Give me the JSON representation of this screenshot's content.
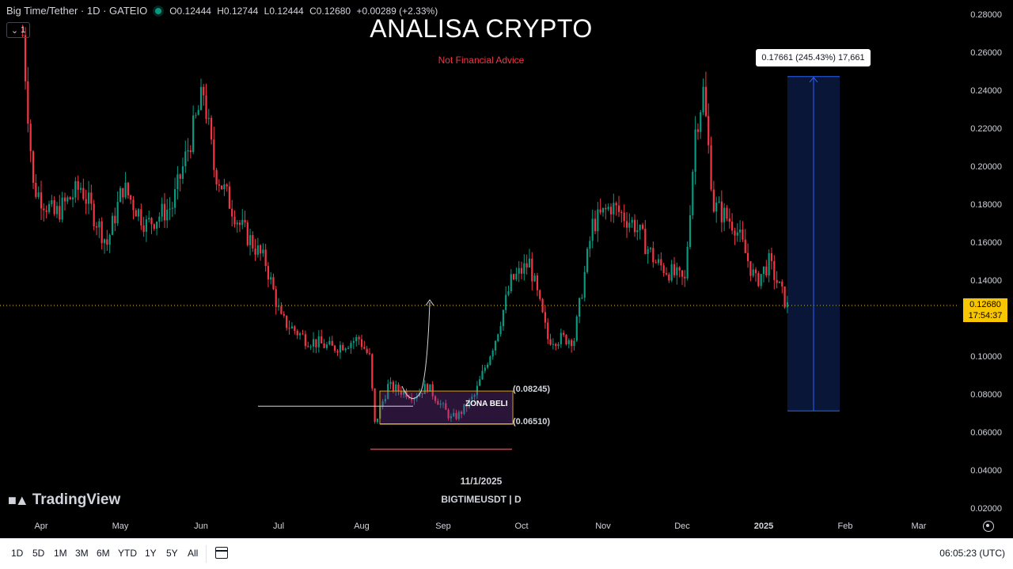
{
  "header": {
    "symbol_title": "Big Time/Tether · 1D · GATEIO",
    "open": "O0.12444",
    "high": "H0.12744",
    "low": "L0.12444",
    "close": "C0.12680",
    "change": "+0.00289 (+2.33%)",
    "collapse_label": "1"
  },
  "overlay": {
    "headline": "ANALISA CRYPTO",
    "subheadline": "Not Financial Advice",
    "watermark_date": "11/1/2025",
    "watermark_symbol": "BIGTIMEUSDT | D",
    "brand": "TradingView"
  },
  "price_axis": {
    "labels": [
      "0.28000",
      "0.26000",
      "0.24000",
      "0.22000",
      "0.20000",
      "0.18000",
      "0.16000",
      "0.14000",
      "0.12000",
      "0.10000",
      "0.08000",
      "0.06000",
      "0.04000",
      "0.02000"
    ],
    "current_price": "0.12680",
    "countdown": "17:54:37"
  },
  "time_axis": {
    "labels": [
      {
        "text": "Apr",
        "bold": false
      },
      {
        "text": "May",
        "bold": false
      },
      {
        "text": "Jun",
        "bold": false
      },
      {
        "text": "Jul",
        "bold": false
      },
      {
        "text": "Aug",
        "bold": false
      },
      {
        "text": "Sep",
        "bold": false
      },
      {
        "text": "Oct",
        "bold": false
      },
      {
        "text": "Nov",
        "bold": false
      },
      {
        "text": "Dec",
        "bold": false
      },
      {
        "text": "2025",
        "bold": true
      },
      {
        "text": "Feb",
        "bold": false
      },
      {
        "text": "Mar",
        "bold": false
      }
    ]
  },
  "bottom_toolbar": {
    "ranges": [
      "1D",
      "5D",
      "1M",
      "3M",
      "6M",
      "YTD",
      "1Y",
      "5Y",
      "All"
    ],
    "clock": "06:05:23 (UTC)"
  },
  "annotations": {
    "measure_label": "0.17661 (245.43%) 17,661",
    "zone_label": "ZONA BELI",
    "zone_high": "(0.08245)",
    "zone_low": "(0.06510)",
    "measure_from": 0.072,
    "measure_to": 0.248,
    "zone_top": 0.08245,
    "zone_bottom": 0.0651,
    "support_level": 0.0745,
    "stop_level": 0.0518
  },
  "chart_data": {
    "type": "line",
    "title": "",
    "xlabel": "",
    "ylabel": "",
    "ylim": [
      0.01,
      0.285
    ],
    "grid": false,
    "x": [
      "Mar 24",
      "Mar 28",
      "Apr 5",
      "Apr 15",
      "Apr 25",
      "May 1",
      "May 10",
      "May 20",
      "May 28",
      "Jun 1",
      "Jun 5",
      "Jun 15",
      "Jun 25",
      "Jul 1",
      "Jul 10",
      "Jul 20",
      "Jul 30",
      "Aug 3",
      "Aug 5",
      "Aug 10",
      "Aug 20",
      "Aug 25",
      "Sep 3",
      "Sep 6",
      "Sep 12",
      "Sep 20",
      "Sep 26",
      "Oct 3",
      "Oct 10",
      "Oct 20",
      "Oct 27",
      "Nov 3",
      "Nov 12",
      "Nov 20",
      "Dec 1",
      "Dec 5",
      "Dec 8",
      "Dec 12",
      "Dec 20",
      "Dec 28",
      "Jan 3",
      "Jan 10"
    ],
    "series": [
      {
        "values": [
          0.27,
          0.19,
          0.175,
          0.19,
          0.16,
          0.19,
          0.17,
          0.18,
          0.22,
          0.24,
          0.2,
          0.17,
          0.15,
          0.12,
          0.11,
          0.105,
          0.11,
          0.1,
          0.065,
          0.085,
          0.08,
          0.085,
          0.068,
          0.07,
          0.08,
          0.11,
          0.14,
          0.15,
          0.11,
          0.11,
          0.17,
          0.18,
          0.17,
          0.15,
          0.14,
          0.22,
          0.24,
          0.18,
          0.17,
          0.14,
          0.15,
          0.1268
        ],
        "color": "#f23645"
      }
    ],
    "up_color": "#089981",
    "down_color": "#f23645"
  }
}
